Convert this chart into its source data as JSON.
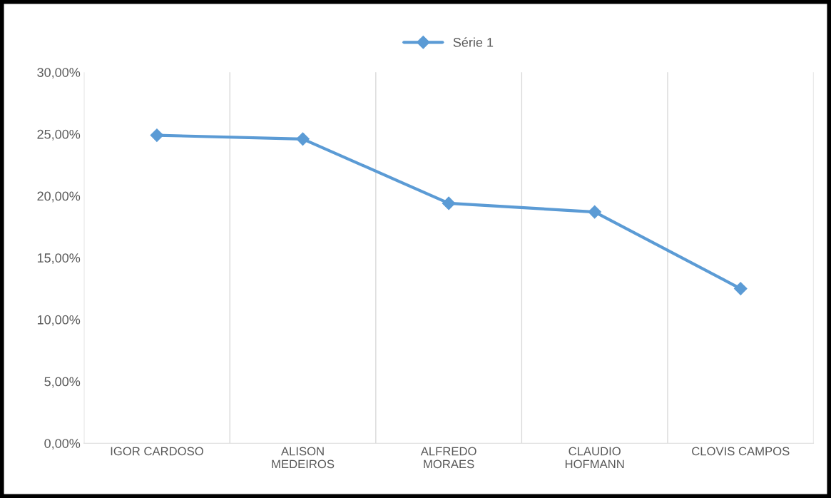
{
  "chart_data": {
    "type": "line",
    "categories": [
      "IGOR CARDOSO",
      "ALISON MEDEIROS",
      "ALFREDO MORAES",
      "CLAUDIO HOFMANN",
      "CLOVIS CAMPOS"
    ],
    "series": [
      {
        "name": "Série 1",
        "color": "#5b9bd5",
        "values": [
          24.9,
          24.6,
          19.4,
          18.7,
          12.5
        ]
      }
    ],
    "ylim": [
      0,
      30
    ],
    "yticks": [
      {
        "value": 0,
        "label": "0,00%"
      },
      {
        "value": 5,
        "label": "5,00%"
      },
      {
        "value": 10,
        "label": "10,00%"
      },
      {
        "value": 15,
        "label": "15,00%"
      },
      {
        "value": 20,
        "label": "20,00%"
      },
      {
        "value": 25,
        "label": "25,00%"
      },
      {
        "value": 30,
        "label": "30,00%"
      }
    ],
    "grid": "x",
    "legend": "top",
    "marker": "diamond",
    "line_style": "solid"
  }
}
